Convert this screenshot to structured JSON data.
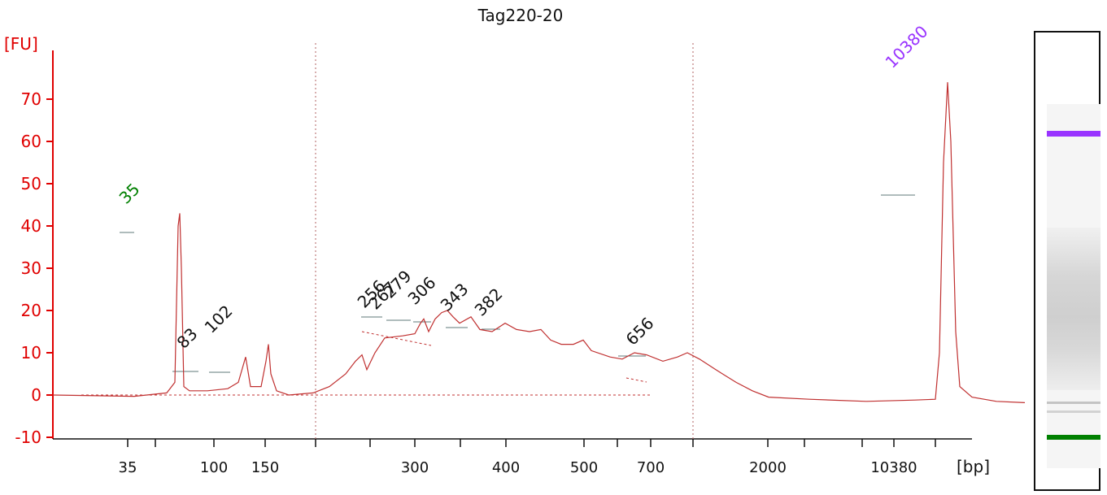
{
  "chart_data": {
    "type": "line",
    "title": "Tag220-20",
    "ylabel": "[FU]",
    "xlabel": "[bp]",
    "ylim": [
      -10,
      75
    ],
    "yticks": [
      -10,
      0,
      10,
      20,
      30,
      40,
      50,
      60,
      70
    ],
    "xtick_labels": [
      "35",
      "100",
      "150",
      "300",
      "400",
      "500",
      "700",
      "2000",
      "10380"
    ],
    "grid": false,
    "markers": [
      {
        "label": "35",
        "color": "#008000"
      },
      {
        "label": "10380",
        "color": "#9933ff"
      }
    ],
    "peaks": [
      {
        "label": "83",
        "fu": 9
      },
      {
        "label": "102",
        "fu": 12
      },
      {
        "label": "256",
        "fu": 18
      },
      {
        "label": "267",
        "fu": 19
      },
      {
        "label": "279",
        "fu": 20
      },
      {
        "label": "306",
        "fu": 18.5
      },
      {
        "label": "343",
        "fu": 17
      },
      {
        "label": "382",
        "fu": 15.5
      },
      {
        "label": "656",
        "fu": 10
      }
    ],
    "series": [
      {
        "color": "#c03030",
        "points": [
          [
            0,
            0
          ],
          [
            100,
            -0.3
          ],
          [
            140,
            0.5
          ],
          [
            150,
            3
          ],
          [
            154,
            40
          ],
          [
            156,
            43
          ],
          [
            158,
            30
          ],
          [
            161,
            2
          ],
          [
            168,
            1
          ],
          [
            190,
            1
          ],
          [
            215,
            1.5
          ],
          [
            228,
            3
          ],
          [
            237,
            9
          ],
          [
            243,
            2
          ],
          [
            256,
            2
          ],
          [
            262,
            8
          ],
          [
            265,
            12
          ],
          [
            268,
            5
          ],
          [
            275,
            1
          ],
          [
            290,
            0
          ],
          [
            320,
            0.5
          ],
          [
            340,
            2
          ],
          [
            360,
            5
          ],
          [
            372,
            8
          ],
          [
            380,
            9.5
          ],
          [
            386,
            6
          ],
          [
            396,
            10
          ],
          [
            408,
            13.5
          ],
          [
            430,
            14
          ],
          [
            445,
            14.5
          ],
          [
            452,
            17
          ],
          [
            456,
            18
          ],
          [
            462,
            15
          ],
          [
            470,
            18
          ],
          [
            478,
            19.5
          ],
          [
            485,
            20
          ],
          [
            492,
            18.5
          ],
          [
            500,
            17
          ],
          [
            514,
            18.5
          ],
          [
            525,
            15.5
          ],
          [
            540,
            15
          ],
          [
            556,
            17
          ],
          [
            570,
            15.5
          ],
          [
            586,
            15
          ],
          [
            600,
            15.5
          ],
          [
            612,
            13
          ],
          [
            625,
            12
          ],
          [
            640,
            12
          ],
          [
            652,
            13
          ],
          [
            662,
            10.5
          ],
          [
            685,
            9
          ],
          [
            700,
            8.5
          ],
          [
            715,
            10
          ],
          [
            730,
            9.5
          ],
          [
            750,
            8
          ],
          [
            768,
            9
          ],
          [
            780,
            10
          ],
          [
            795,
            8.5
          ],
          [
            815,
            6
          ],
          [
            840,
            3
          ],
          [
            860,
            1
          ],
          [
            880,
            -0.5
          ],
          [
            930,
            -1
          ],
          [
            1000,
            -1.5
          ],
          [
            1060,
            -1.2
          ],
          [
            1085,
            -1
          ],
          [
            1090,
            10
          ],
          [
            1095,
            55
          ],
          [
            1100,
            74
          ],
          [
            1104,
            60
          ],
          [
            1110,
            15
          ],
          [
            1115,
            2
          ],
          [
            1130,
            -0.5
          ],
          [
            1160,
            -1.5
          ],
          [
            1195,
            -1.8
          ]
        ]
      }
    ]
  }
}
